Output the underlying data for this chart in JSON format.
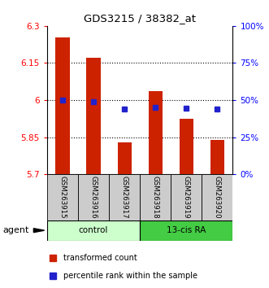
{
  "title": "GDS3215 / 38382_at",
  "samples": [
    "GSM263915",
    "GSM263916",
    "GSM263917",
    "GSM263918",
    "GSM263919",
    "GSM263920"
  ],
  "red_bar_tops": [
    6.255,
    6.17,
    5.83,
    6.035,
    5.925,
    5.84
  ],
  "blue_square_y": [
    6.0,
    5.993,
    5.963,
    5.972,
    5.968,
    5.963
  ],
  "y_min": 5.7,
  "y_max": 6.3,
  "y_ticks_left": [
    5.7,
    5.85,
    6.0,
    6.15,
    6.3
  ],
  "y_ticks_right_pct": [
    0,
    25,
    50,
    75,
    100
  ],
  "y_ticks_right_val": [
    5.7,
    5.85,
    6.0,
    6.15,
    6.3
  ],
  "bar_color": "#cc2200",
  "square_color": "#2222cc",
  "control_label": "control",
  "treatment_label": "13-cis RA",
  "agent_label": "agent",
  "legend_bar": "transformed count",
  "legend_square": "percentile rank within the sample",
  "control_color": "#ccffcc",
  "treatment_color": "#44cc44",
  "sample_box_color": "#cccccc",
  "grid_lines": [
    5.85,
    6.0,
    6.15
  ]
}
